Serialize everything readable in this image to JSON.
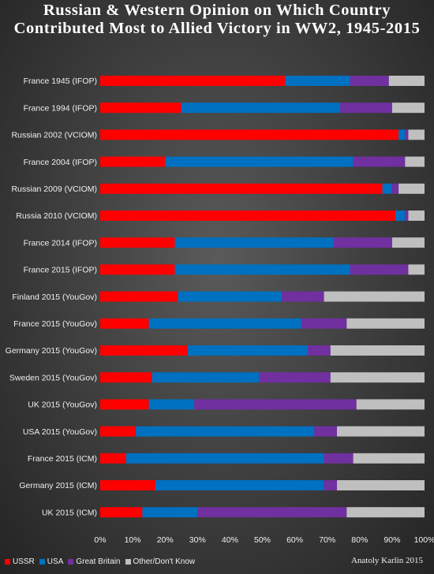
{
  "chart_data": {
    "type": "bar",
    "orientation": "horizontal",
    "stacked": true,
    "title": "Russian & Western Opinion on Which Country Contributed Most to Allied Victory in WW2, 1945-2015",
    "categories": [
      "France 1945 (IFOP)",
      "France 1994 (IFOP)",
      "Russian 2002 (VCIOM)",
      "France 2004 (IFOP)",
      "Russian 2009 (VCIOM)",
      "Russia 2010 (VCIOM)",
      "France 2014 (IFOP)",
      "France 2015 (IFOP)",
      "Finland 2015 (YouGov)",
      "France 2015 (YouGov)",
      "Germany 2015 (YouGov)",
      "Sweden 2015 (YouGov)",
      "UK 2015 (YouGov)",
      "USA 2015 (YouGov)",
      "France 2015 (ICM)",
      "Germany 2015 (ICM)",
      "UK 2015 (ICM)"
    ],
    "series": [
      {
        "name": "USSR",
        "color": "#ff0000",
        "values": [
          57,
          25,
          92,
          20,
          87,
          91,
          23,
          23,
          24,
          15,
          27,
          16,
          15,
          11,
          8,
          17,
          13
        ]
      },
      {
        "name": "USA",
        "color": "#0070c0",
        "values": [
          20,
          49,
          2,
          58,
          3,
          3,
          49,
          54,
          32,
          47,
          37,
          33,
          14,
          55,
          61,
          52,
          17
        ]
      },
      {
        "name": "Great Britain",
        "color": "#7030a0",
        "values": [
          12,
          16,
          1,
          16,
          2,
          1,
          18,
          18,
          13,
          14,
          7,
          22,
          50,
          7,
          9,
          4,
          46
        ]
      },
      {
        "name": "Other/Don't Know",
        "color": "#bfbfbf",
        "values": [
          11,
          10,
          5,
          6,
          8,
          5,
          10,
          5,
          31,
          24,
          29,
          29,
          21,
          27,
          22,
          27,
          24
        ]
      }
    ],
    "xlim": [
      0,
      100
    ],
    "x_ticks": [
      "0%",
      "10%",
      "20%",
      "30%",
      "40%",
      "50%",
      "60%",
      "70%",
      "80%",
      "90%",
      "100%"
    ],
    "legend_position": "bottom-left",
    "grid": false
  },
  "credit": "Anatoly Karlin 2015"
}
